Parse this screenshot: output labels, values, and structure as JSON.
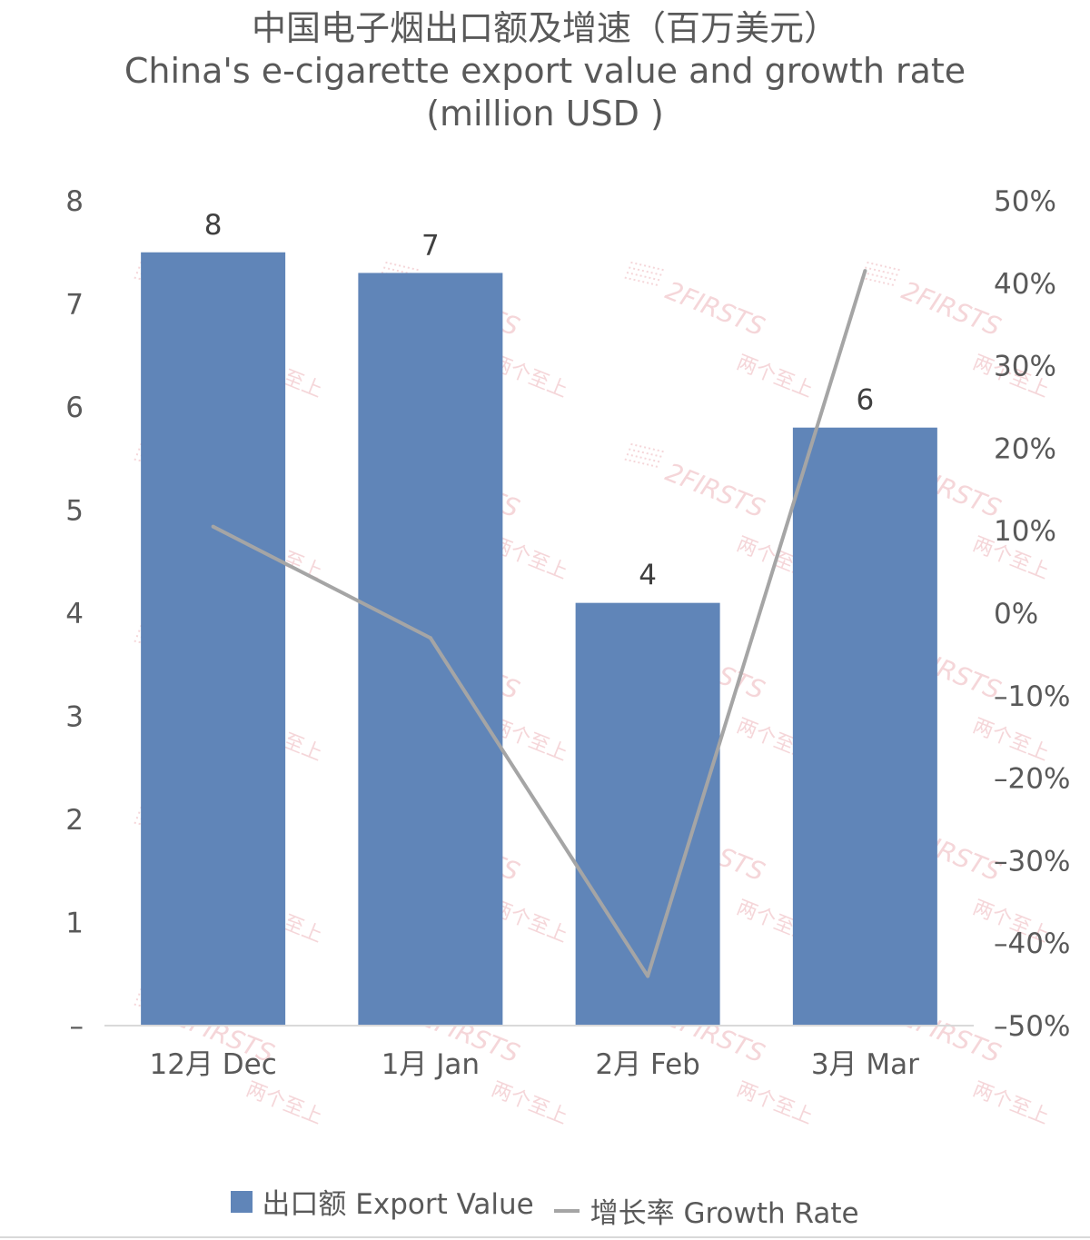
{
  "title": {
    "line1": "中国电子烟出口额及增速（百万美元）",
    "line2": "China's e-cigarette export value and growth rate",
    "line3": "(million USD )"
  },
  "chart_data": {
    "type": "bar",
    "categories": [
      "12月 Dec",
      "1月 Jan",
      "2月 Feb",
      "3月 Mar"
    ],
    "series": [
      {
        "name": "出口额 Export Value",
        "type": "bar",
        "axis": "left",
        "values": [
          7.5,
          7.3,
          4.1,
          5.8
        ],
        "data_labels": [
          "8",
          "7",
          "4",
          "6"
        ],
        "color": "#6085b8"
      },
      {
        "name": "增长率 Growth Rate",
        "type": "line",
        "axis": "right",
        "values": [
          0.105,
          -0.03,
          -0.44,
          0.415
        ],
        "color": "#a5a5a5"
      }
    ],
    "y_left": {
      "ylim": [
        0,
        8
      ],
      "tick_values": [
        0,
        1,
        2,
        3,
        4,
        5,
        6,
        7,
        8
      ],
      "tick_labels": [
        "–",
        "1",
        "2",
        "3",
        "4",
        "5",
        "6",
        "7",
        "8"
      ]
    },
    "y_right": {
      "ylim": [
        -0.5,
        0.5
      ],
      "tick_values": [
        0.5,
        0.4,
        0.3,
        0.2,
        0.1,
        0,
        -0.1,
        -0.2,
        -0.3,
        -0.4,
        -0.5
      ],
      "tick_labels": [
        "50%",
        "40%",
        "30%",
        "20%",
        "10%",
        "0%",
        "–10%",
        "–20%",
        "–30%",
        "–40%",
        "–50%"
      ]
    },
    "grid": false,
    "legend": "bottom"
  },
  "legend": {
    "bar_label": "出口额 Export Value",
    "line_label": "增长率 Growth Rate"
  },
  "watermark": {
    "text": "2FIRSTS",
    "subtext": "两个至上",
    "color": "#f2c9cd"
  }
}
